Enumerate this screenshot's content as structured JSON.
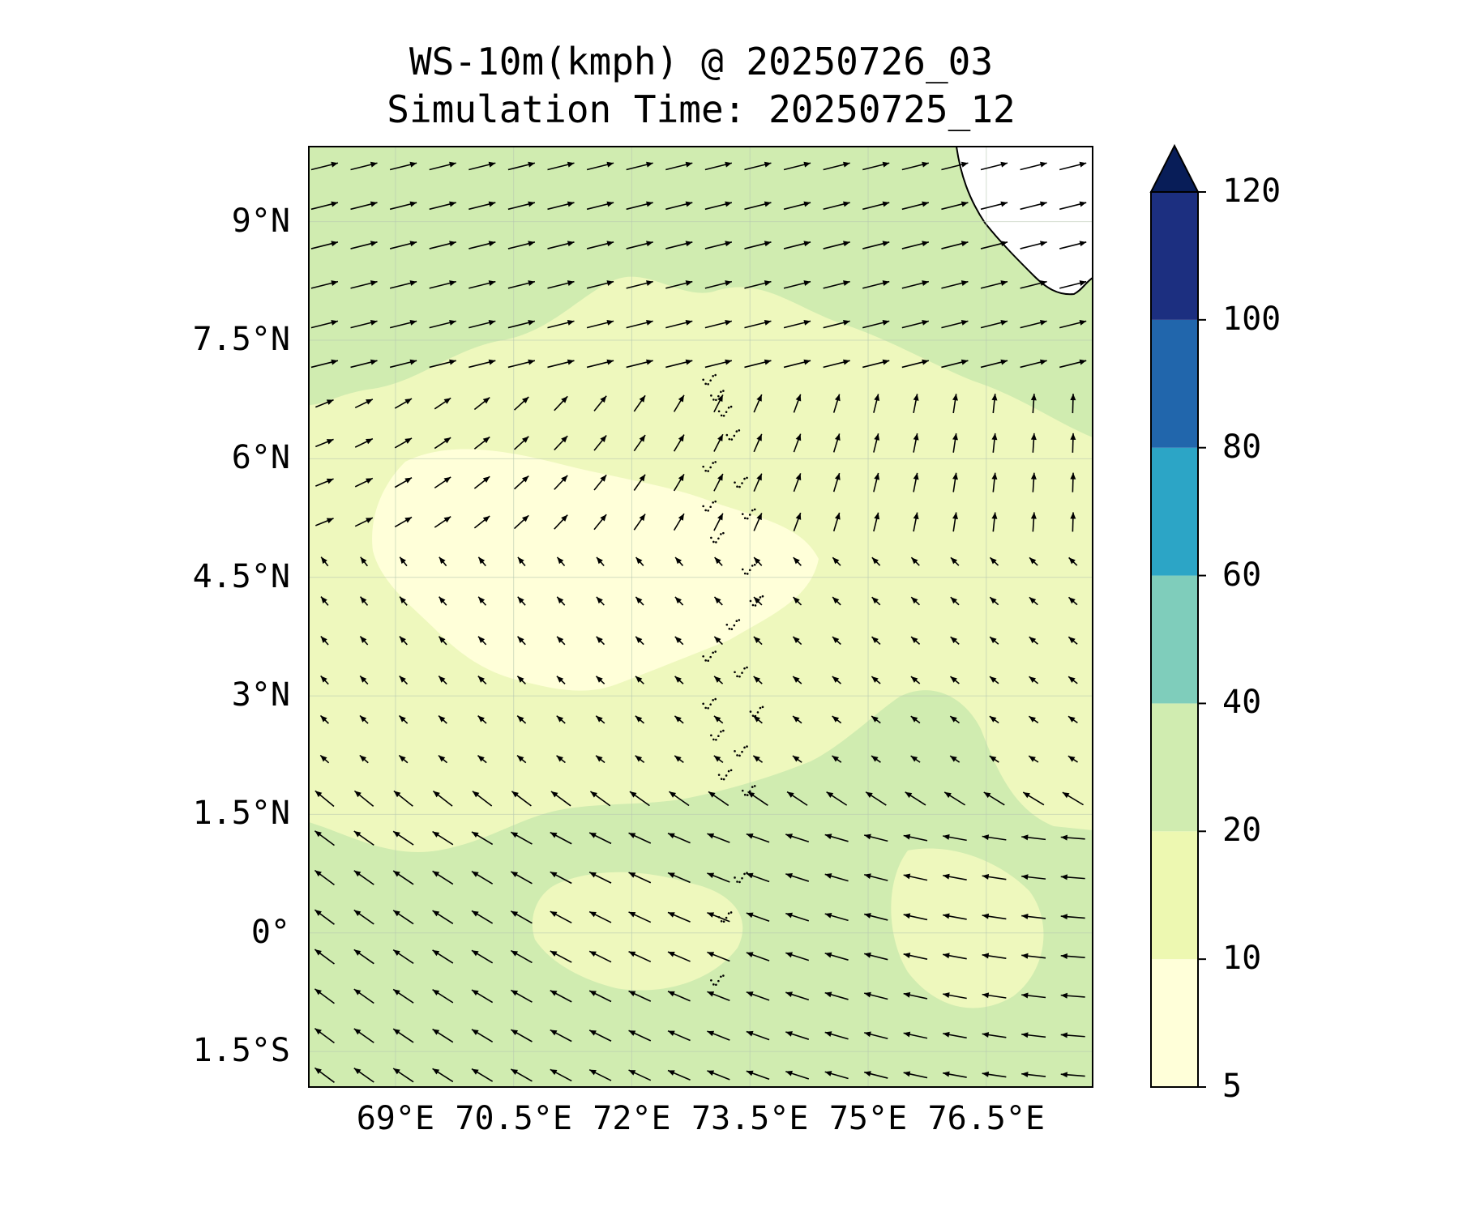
{
  "title": {
    "line1": "WS-10m(kmph) @ 20250726_03",
    "line2": "Simulation Time: 20250725_12"
  },
  "map": {
    "lon_range": [
      67.9,
      77.85
    ],
    "lat_range": [
      -1.95,
      9.95
    ],
    "lat_ticks": [
      {
        "value": 9,
        "label": "9°N"
      },
      {
        "value": 7.5,
        "label": "7.5°N"
      },
      {
        "value": 6,
        "label": "6°N"
      },
      {
        "value": 4.5,
        "label": "4.5°N"
      },
      {
        "value": 3,
        "label": "3°N"
      },
      {
        "value": 1.5,
        "label": "1.5°N"
      },
      {
        "value": 0,
        "label": "0°"
      },
      {
        "value": -1.5,
        "label": "1.5°S"
      }
    ],
    "lon_ticks": [
      {
        "value": 69,
        "label": "69°E"
      },
      {
        "value": 70.5,
        "label": "70.5°E"
      },
      {
        "value": 72,
        "label": "72°E"
      },
      {
        "value": 73.5,
        "label": "73.5°E"
      },
      {
        "value": 75,
        "label": "75°E"
      },
      {
        "value": 76.5,
        "label": "76.5°E"
      }
    ],
    "gridlines": true
  },
  "colorbar": {
    "levels": [
      5,
      10,
      20,
      40,
      60,
      80,
      100,
      120
    ],
    "labels": [
      "5",
      "10",
      "20",
      "40",
      "60",
      "80",
      "100",
      "120"
    ],
    "colors": [
      "#ffffd9",
      "#edf8b1",
      "#d0ecb0",
      "#7fcdbb",
      "#2ca5c6",
      "#2166ac",
      "#1c2f80"
    ],
    "extend_color": "#081d58",
    "extend": "max"
  },
  "field_colors": {
    "band_5_10": "#ffffd9",
    "band_10_20": "#eef8bd",
    "band_20_40": "#d0ecb0",
    "land": "#ffffff",
    "coastline": "#000000"
  }
}
